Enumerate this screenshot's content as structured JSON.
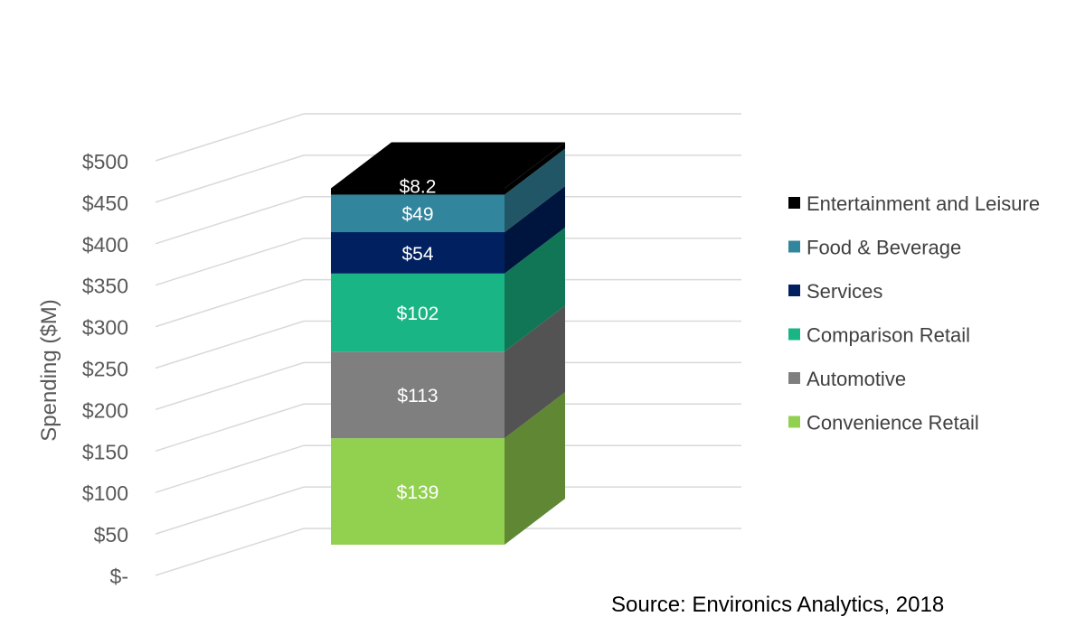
{
  "chart_data": {
    "type": "bar",
    "stacked": true,
    "three_d": true,
    "ylabel": "Spending ($M)",
    "ylim": [
      0,
      500
    ],
    "yticks": [
      0,
      50,
      100,
      150,
      200,
      250,
      300,
      350,
      400,
      450,
      500
    ],
    "ytick_labels": [
      "$-",
      "$50",
      "$100",
      "$150",
      "$200",
      "$250",
      "$300",
      "$350",
      "$400",
      "$450",
      "$500"
    ],
    "grid": true,
    "legend_position": "right",
    "series": [
      {
        "name": "Convenience Retail",
        "value": 139,
        "label": "$139",
        "color": "#92d050"
      },
      {
        "name": "Automotive",
        "value": 113,
        "label": "$113",
        "color": "#7f7f7f"
      },
      {
        "name": "Comparison Retail",
        "value": 102,
        "label": "$102",
        "color": "#1ab584"
      },
      {
        "name": "Services",
        "value": 54,
        "label": "$54",
        "color": "#002060"
      },
      {
        "name": "Food & Beverage",
        "value": 49,
        "label": "$49",
        "color": "#31859c"
      },
      {
        "name": "Entertainment and Leisure",
        "value": 8.2,
        "label": "$8.2",
        "color": "#000000"
      }
    ]
  },
  "source": "Source: Environics Analytics, 2018"
}
